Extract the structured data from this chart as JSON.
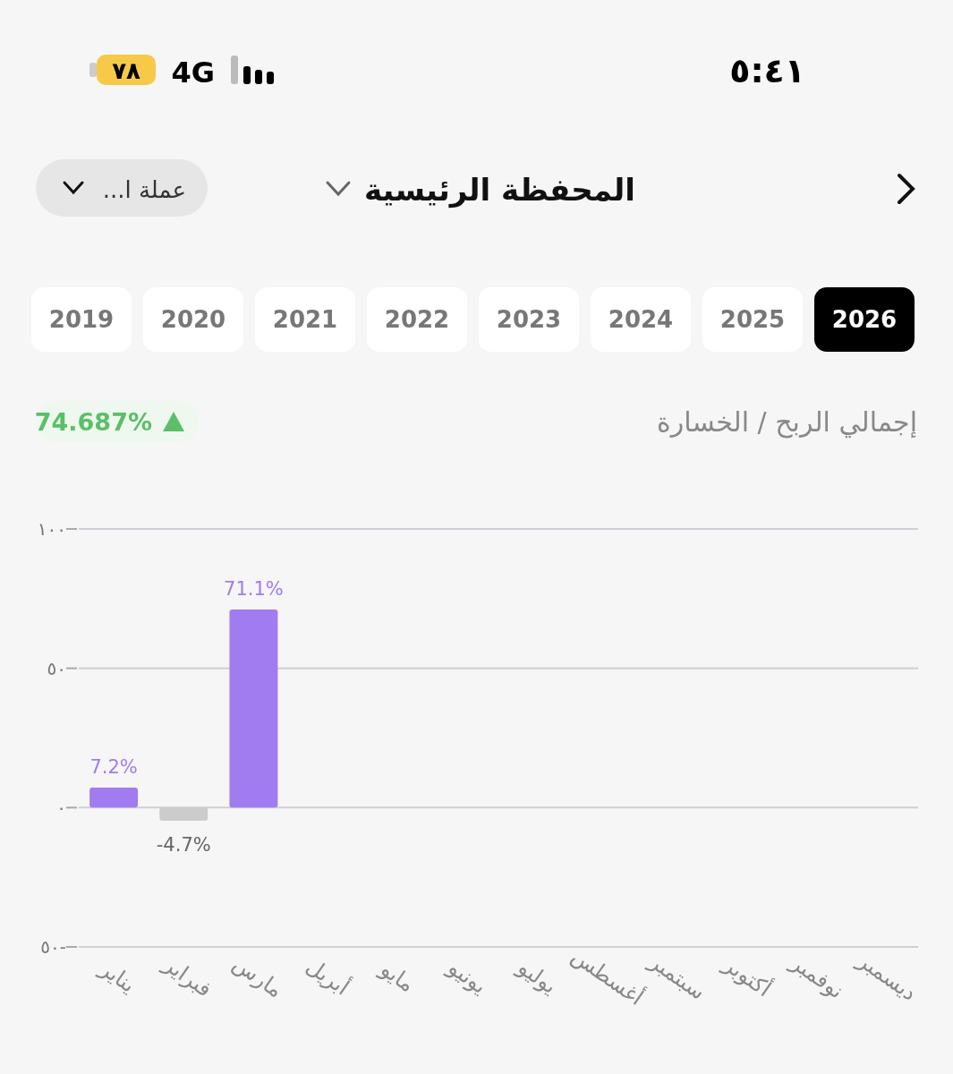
{
  "chart_data": {
    "type": "bar",
    "title": "إجمالي الربح / الخسارة",
    "categories": [
      "يناير",
      "فبراير",
      "مارس",
      "أبريل",
      "مايو",
      "يونيو",
      "يوليو",
      "أغسطس",
      "سبتمبر",
      "أكتوبر",
      "نوفمبر",
      "ديسمبر"
    ],
    "values": [
      7.2,
      -4.7,
      71.1,
      null,
      null,
      null,
      null,
      null,
      null,
      null,
      null,
      null
    ],
    "colors": [
      "#a07cf0",
      "#cccccc",
      "#a07cf0",
      null,
      null,
      null,
      null,
      null,
      null,
      null,
      null,
      null
    ],
    "value_labels": [
      "7.2%",
      "-4.7%",
      "71.1%",
      null,
      null,
      null,
      null,
      null,
      null,
      null,
      null,
      null
    ],
    "ylim": [
      -50,
      100
    ],
    "yticks": [
      {
        "value": 100,
        "label": "١٠٠"
      },
      {
        "value": 50,
        "label": "٥٠"
      },
      {
        "value": 0,
        "label": "٠"
      },
      {
        "value": -50,
        "label": "٥٠-"
      }
    ],
    "grid": "y",
    "annotations": [
      "٥:٤١",
      "4G",
      "٧٨",
      "المحفظة الرئيسية",
      "عملة ا...",
      "2019",
      "2020",
      "2021",
      "2022",
      "2023",
      "2024",
      "2025",
      "2026",
      "74.687%"
    ]
  }
}
